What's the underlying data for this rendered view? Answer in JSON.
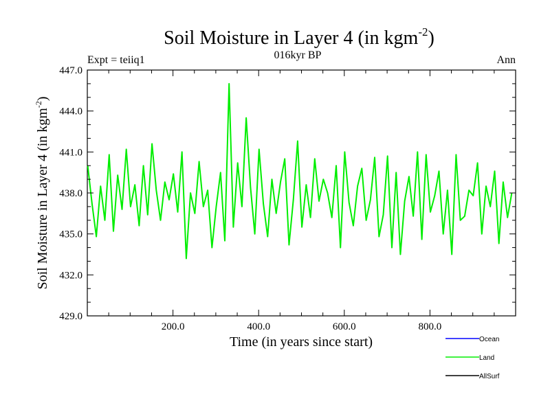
{
  "chart_data": {
    "type": "line",
    "title": "Soil Moisture in Layer 4 (in kgm",
    "title_sup": "-2",
    "title_tail": ")",
    "subtitle": "016kyr BP",
    "left_label": "Expt = teiiq1",
    "right_label": "Ann",
    "xlabel": "Time (in years since start)",
    "ylabel": "Soil Moisture in Layer 4 (in kgm",
    "ylabel_sup": "-2",
    "ylabel_tail": ")",
    "xlim": [
      0,
      1000
    ],
    "ylim": [
      429,
      447
    ],
    "xticks": [
      200,
      400,
      600,
      800
    ],
    "xtick_labels": [
      "200.0",
      "400.0",
      "600.0",
      "800.0"
    ],
    "yticks": [
      429,
      432,
      435,
      438,
      441,
      444,
      447
    ],
    "ytick_labels": [
      "429.0",
      "432.0",
      "435.0",
      "438.0",
      "441.0",
      "444.0",
      "447.0"
    ],
    "legend_position": "bottom-right",
    "legend": [
      {
        "name": "Ocean",
        "color": "#0000ff"
      },
      {
        "name": "Land",
        "color": "#00ee00"
      },
      {
        "name": "AllSurf",
        "color": "#000000"
      }
    ],
    "series": [
      {
        "name": "Land",
        "color": "#00ee00",
        "x_start": 1,
        "x_step": 10,
        "values": [
          440.0,
          437.2,
          434.8,
          438.5,
          436.0,
          440.8,
          435.2,
          439.3,
          436.8,
          441.2,
          437.0,
          438.6,
          435.6,
          440.0,
          436.4,
          441.6,
          438.2,
          436.0,
          438.8,
          437.5,
          439.4,
          436.6,
          441.0,
          433.2,
          438.0,
          436.5,
          440.3,
          437.0,
          438.2,
          434.0,
          437.0,
          439.5,
          434.5,
          446.0,
          435.5,
          440.2,
          437.0,
          443.5,
          438.4,
          435.0,
          441.2,
          437.2,
          434.8,
          439.0,
          436.5,
          438.8,
          440.5,
          434.2,
          437.5,
          441.8,
          435.5,
          438.6,
          436.2,
          440.5,
          437.4,
          439.0,
          438.0,
          436.2,
          440.0,
          434.0,
          441.0,
          437.3,
          435.6,
          438.5,
          439.8,
          436.0,
          437.5,
          440.6,
          434.8,
          436.4,
          440.7,
          434.0,
          439.5,
          433.5,
          437.4,
          439.2,
          436.3,
          441.0,
          434.6,
          440.8,
          436.6,
          437.8,
          439.6,
          435.0,
          438.2,
          433.5,
          440.8,
          436.0,
          436.3,
          438.2,
          437.8,
          440.2,
          435.0,
          438.5,
          437.0,
          439.6,
          434.3,
          438.8,
          436.2,
          438.0
        ]
      }
    ]
  }
}
